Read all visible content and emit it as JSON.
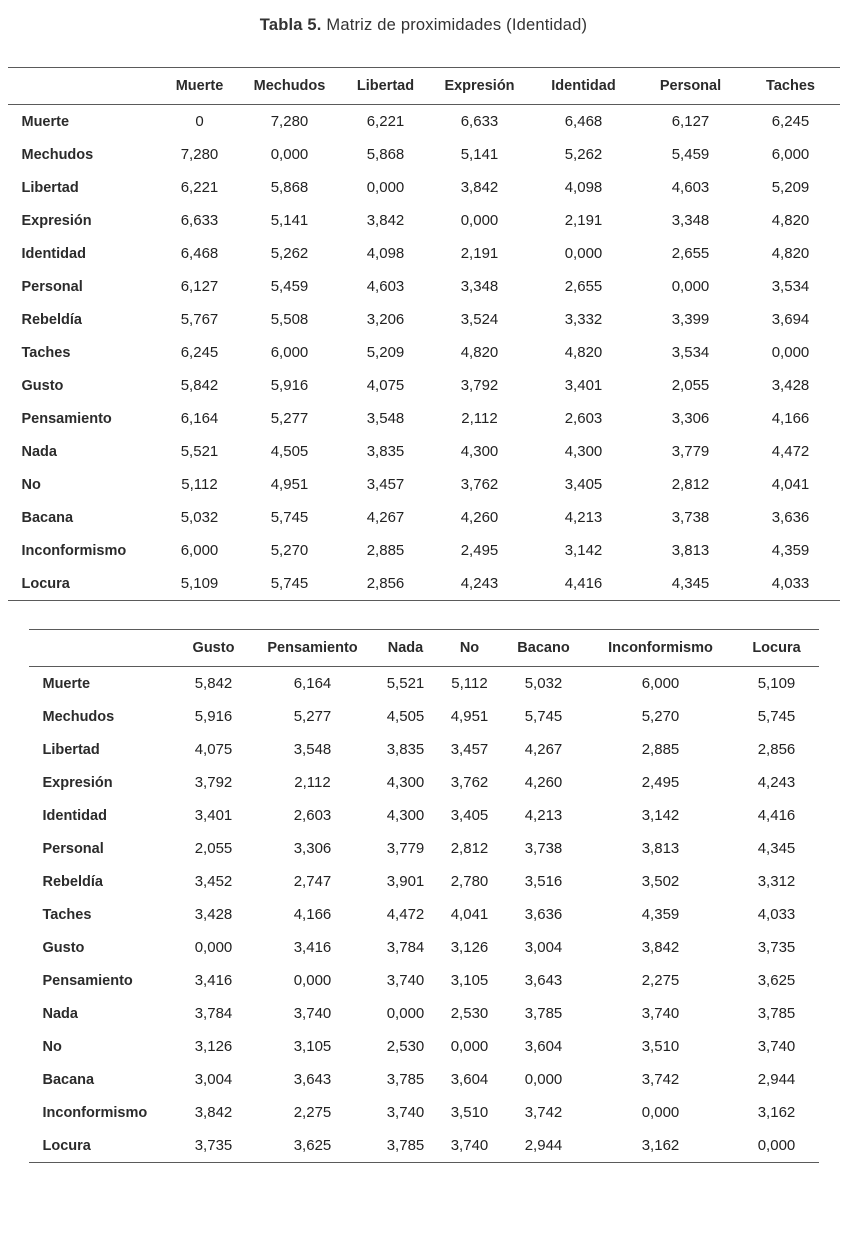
{
  "page": {
    "title_bold": "Tabla 5.",
    "title_rest": " Matriz de proximidades (Identidad)"
  },
  "table1": {
    "columns": [
      "Muerte",
      "Mechudos",
      "Libertad",
      "Expresión",
      "Identidad",
      "Personal",
      "Taches"
    ],
    "rows": [
      {
        "label": "Muerte",
        "values": [
          "0",
          "7,280",
          "6,221",
          "6,633",
          "6,468",
          "6,127",
          "6,245"
        ]
      },
      {
        "label": "Mechudos",
        "values": [
          "7,280",
          "0,000",
          "5,868",
          "5,141",
          "5,262",
          "5,459",
          "6,000"
        ]
      },
      {
        "label": "Libertad",
        "values": [
          "6,221",
          "5,868",
          "0,000",
          "3,842",
          "4,098",
          "4,603",
          "5,209"
        ]
      },
      {
        "label": "Expresión",
        "values": [
          "6,633",
          "5,141",
          "3,842",
          "0,000",
          "2,191",
          "3,348",
          "4,820"
        ]
      },
      {
        "label": "Identidad",
        "values": [
          "6,468",
          "5,262",
          "4,098",
          "2,191",
          "0,000",
          "2,655",
          "4,820"
        ]
      },
      {
        "label": "Personal",
        "values": [
          "6,127",
          "5,459",
          "4,603",
          "3,348",
          "2,655",
          "0,000",
          "3,534"
        ]
      },
      {
        "label": "Rebeldía",
        "values": [
          "5,767",
          "5,508",
          "3,206",
          "3,524",
          "3,332",
          "3,399",
          "3,694"
        ]
      },
      {
        "label": "Taches",
        "values": [
          "6,245",
          "6,000",
          "5,209",
          "4,820",
          "4,820",
          "3,534",
          "0,000"
        ]
      },
      {
        "label": "Gusto",
        "values": [
          "5,842",
          "5,916",
          "4,075",
          "3,792",
          "3,401",
          "2,055",
          "3,428"
        ]
      },
      {
        "label": "Pensamiento",
        "values": [
          "6,164",
          "5,277",
          "3,548",
          "2,112",
          "2,603",
          "3,306",
          "4,166"
        ]
      },
      {
        "label": "Nada",
        "values": [
          "5,521",
          "4,505",
          "3,835",
          "4,300",
          "4,300",
          "3,779",
          "4,472"
        ]
      },
      {
        "label": "No",
        "values": [
          "5,112",
          "4,951",
          "3,457",
          "3,762",
          "3,405",
          "2,812",
          "4,041"
        ]
      },
      {
        "label": "Bacana",
        "values": [
          "5,032",
          "5,745",
          "4,267",
          "4,260",
          "4,213",
          "3,738",
          "3,636"
        ]
      },
      {
        "label": "Inconformismo",
        "values": [
          "6,000",
          "5,270",
          "2,885",
          "2,495",
          "3,142",
          "3,813",
          "4,359"
        ]
      },
      {
        "label": "Locura",
        "values": [
          "5,109",
          "5,745",
          "2,856",
          "4,243",
          "4,416",
          "4,345",
          "4,033"
        ]
      }
    ]
  },
  "table2": {
    "columns": [
      "Gusto",
      "Pensamiento",
      "Nada",
      "No",
      "Bacano",
      "Inconformismo",
      "Locura"
    ],
    "rows": [
      {
        "label": "Muerte",
        "values": [
          "5,842",
          "6,164",
          "5,521",
          "5,112",
          "5,032",
          "6,000",
          "5,109"
        ]
      },
      {
        "label": "Mechudos",
        "values": [
          "5,916",
          "5,277",
          "4,505",
          "4,951",
          "5,745",
          "5,270",
          "5,745"
        ]
      },
      {
        "label": "Libertad",
        "values": [
          "4,075",
          "3,548",
          "3,835",
          "3,457",
          "4,267",
          "2,885",
          "2,856"
        ]
      },
      {
        "label": "Expresión",
        "values": [
          "3,792",
          "2,112",
          "4,300",
          "3,762",
          "4,260",
          "2,495",
          "4,243"
        ]
      },
      {
        "label": "Identidad",
        "values": [
          "3,401",
          "2,603",
          "4,300",
          "3,405",
          "4,213",
          "3,142",
          "4,416"
        ]
      },
      {
        "label": "Personal",
        "values": [
          "2,055",
          "3,306",
          "3,779",
          "2,812",
          "3,738",
          "3,813",
          "4,345"
        ]
      },
      {
        "label": "Rebeldía",
        "values": [
          "3,452",
          "2,747",
          "3,901",
          "2,780",
          "3,516",
          "3,502",
          "3,312"
        ]
      },
      {
        "label": "Taches",
        "values": [
          "3,428",
          "4,166",
          "4,472",
          "4,041",
          "3,636",
          "4,359",
          "4,033"
        ]
      },
      {
        "label": "Gusto",
        "values": [
          "0,000",
          "3,416",
          "3,784",
          "3,126",
          "3,004",
          "3,842",
          "3,735"
        ]
      },
      {
        "label": "Pensamiento",
        "values": [
          "3,416",
          "0,000",
          "3,740",
          "3,105",
          "3,643",
          "2,275",
          "3,625"
        ]
      },
      {
        "label": "Nada",
        "values": [
          "3,784",
          "3,740",
          "0,000",
          "2,530",
          "3,785",
          "3,740",
          "3,785"
        ]
      },
      {
        "label": "No",
        "values": [
          "3,126",
          "3,105",
          "2,530",
          "0,000",
          "3,604",
          "3,510",
          "3,740"
        ]
      },
      {
        "label": "Bacana",
        "values": [
          "3,004",
          "3,643",
          "3,785",
          "3,604",
          "0,000",
          "3,742",
          "2,944"
        ]
      },
      {
        "label": "Inconformismo",
        "values": [
          "3,842",
          "2,275",
          "3,740",
          "3,510",
          "3,742",
          "0,000",
          "3,162"
        ]
      },
      {
        "label": "Locura",
        "values": [
          "3,735",
          "3,625",
          "3,785",
          "3,740",
          "2,944",
          "3,162",
          "0,000"
        ]
      }
    ]
  }
}
